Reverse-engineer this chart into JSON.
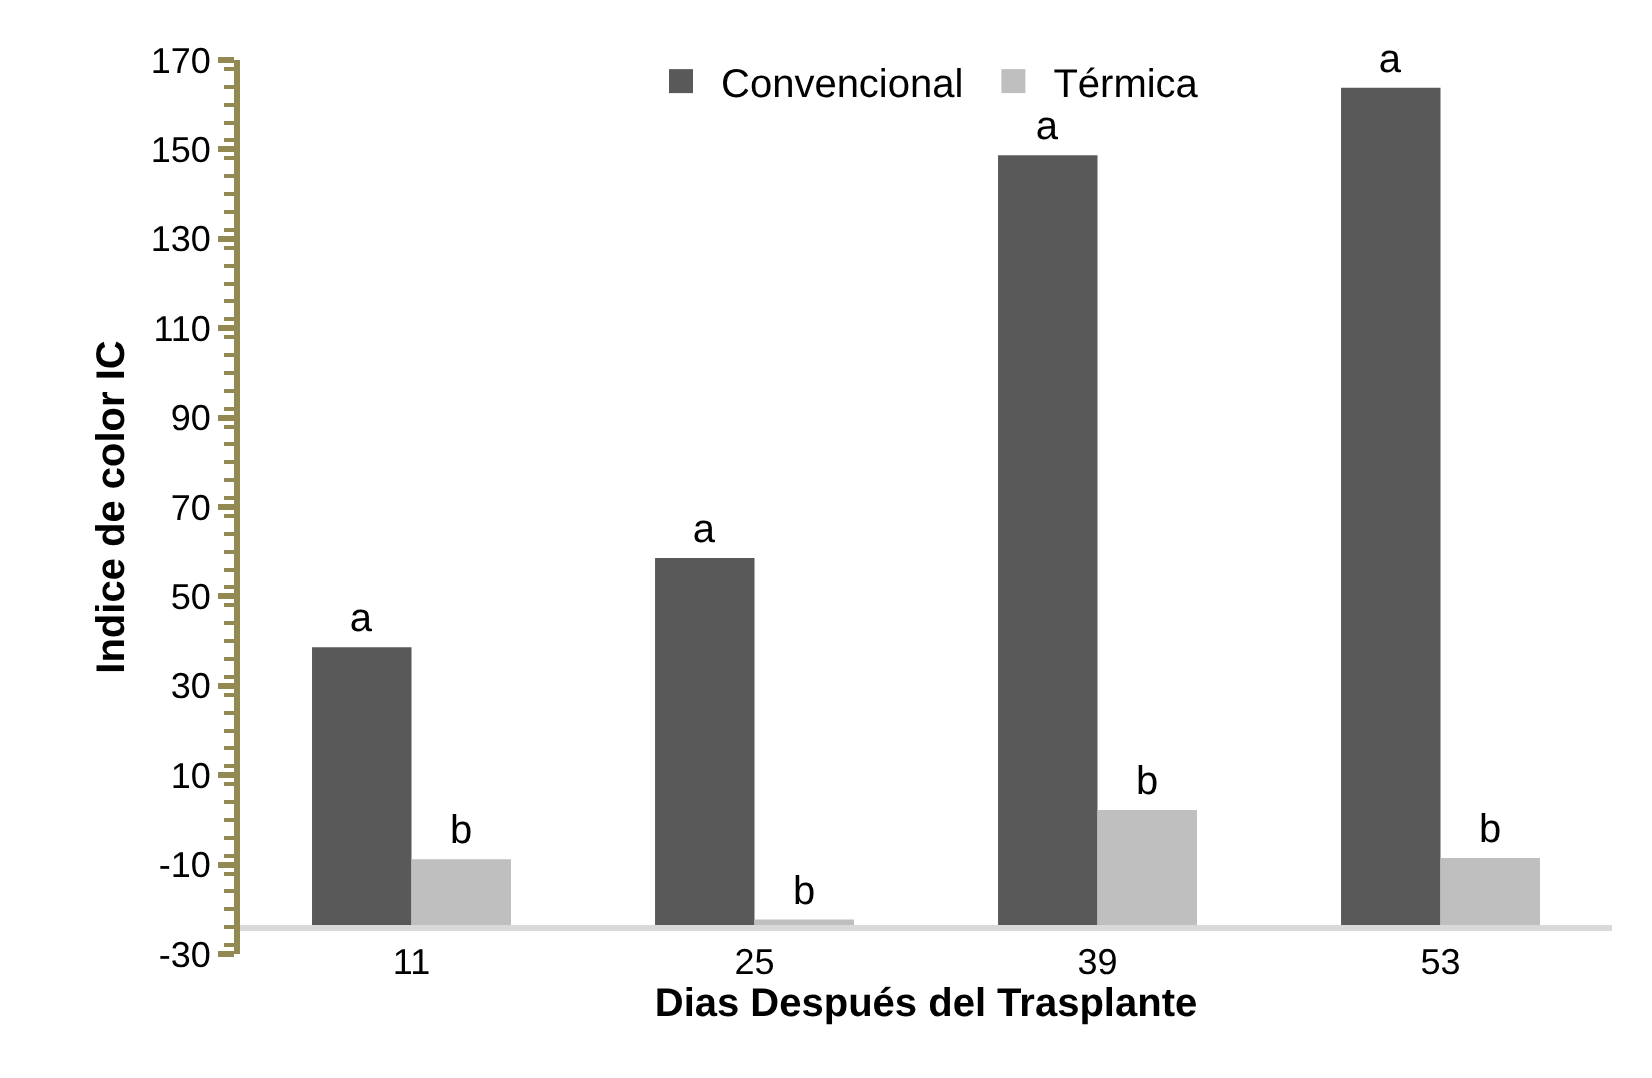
{
  "chart_data": {
    "type": "bar",
    "xlabel": "Dias Después del Trasplante",
    "ylabel": "Indice de color IC",
    "categories": [
      "11",
      "25",
      "39",
      "53"
    ],
    "series": [
      {
        "name": "Convencional",
        "color": "#595959",
        "base": [
          -24,
          -24,
          -24,
          -24
        ],
        "values": [
          62.6,
          82.6,
          172.7,
          187.8
        ],
        "value_labels": [
          "a",
          "a",
          "a",
          "a"
        ]
      },
      {
        "name": "Térmica",
        "color": "#bfbfbf",
        "base": [
          -24,
          -24,
          -24,
          -24
        ],
        "values": [
          15.2,
          1.7,
          26.2,
          15.5
        ],
        "value_labels": [
          "b",
          "b",
          "b",
          "b"
        ]
      }
    ],
    "ylim": [
      -30,
      170
    ],
    "yticks": [
      -30,
      -10,
      10,
      30,
      50,
      70,
      90,
      110,
      130,
      150,
      170
    ],
    "legend": "top"
  }
}
